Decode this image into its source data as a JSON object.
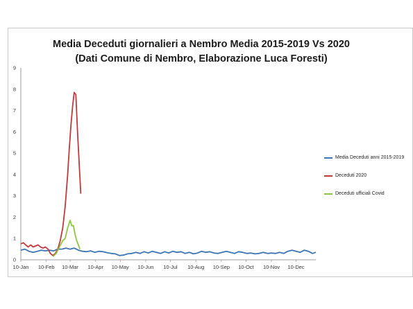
{
  "chart_data": {
    "type": "line",
    "title": "Media Deceduti giornalieri a Nembro Media 2015-2019 Vs 2020",
    "subtitle": "(Dati Comune di Nembro, Elaborazione Luca Foresti)",
    "xlabel": "",
    "ylabel": "",
    "ylim": [
      0,
      9
    ],
    "yticks": [
      "0",
      "1",
      "2",
      "3",
      "4",
      "5",
      "6",
      "7",
      "8",
      "9"
    ],
    "xlim": [
      1,
      360
    ],
    "xticks": [
      {
        "day": 1,
        "label": "10-Jan"
      },
      {
        "day": 32,
        "label": "10-Feb"
      },
      {
        "day": 61,
        "label": "10-Mar"
      },
      {
        "day": 92,
        "label": "10-Apr"
      },
      {
        "day": 122,
        "label": "10-May"
      },
      {
        "day": 153,
        "label": "10-Jun"
      },
      {
        "day": 183,
        "label": "10-Jul"
      },
      {
        "day": 214,
        "label": "10-Aug"
      },
      {
        "day": 245,
        "label": "10-Sep"
      },
      {
        "day": 275,
        "label": "10-Oct"
      },
      {
        "day": 306,
        "label": "10-Nov"
      },
      {
        "day": 336,
        "label": "10-Dec"
      }
    ],
    "grid": false,
    "legend_position": "right",
    "series": [
      {
        "name": "Media Deceduti anni 2015-2019",
        "color": "#3c74b4",
        "x": [
          1,
          6,
          11,
          16,
          21,
          26,
          31,
          36,
          41,
          46,
          51,
          56,
          61,
          66,
          71,
          76,
          81,
          86,
          91,
          96,
          101,
          106,
          111,
          116,
          121,
          126,
          131,
          136,
          141,
          146,
          151,
          156,
          161,
          166,
          171,
          176,
          181,
          186,
          191,
          196,
          201,
          206,
          211,
          216,
          221,
          226,
          231,
          236,
          241,
          246,
          251,
          256,
          261,
          266,
          271,
          276,
          281,
          286,
          291,
          296,
          301,
          306,
          311,
          316,
          321,
          326,
          331,
          336,
          341,
          346,
          351,
          356,
          360
        ],
        "y": [
          0.45,
          0.5,
          0.4,
          0.35,
          0.4,
          0.45,
          0.42,
          0.45,
          0.42,
          0.5,
          0.5,
          0.55,
          0.5,
          0.55,
          0.45,
          0.4,
          0.38,
          0.42,
          0.35,
          0.4,
          0.38,
          0.33,
          0.3,
          0.28,
          0.2,
          0.22,
          0.28,
          0.3,
          0.35,
          0.3,
          0.38,
          0.32,
          0.4,
          0.35,
          0.3,
          0.38,
          0.32,
          0.4,
          0.35,
          0.38,
          0.3,
          0.35,
          0.28,
          0.32,
          0.4,
          0.35,
          0.38,
          0.32,
          0.3,
          0.35,
          0.4,
          0.35,
          0.3,
          0.38,
          0.35,
          0.3,
          0.32,
          0.28,
          0.3,
          0.35,
          0.3,
          0.32,
          0.3,
          0.35,
          0.3,
          0.4,
          0.45,
          0.4,
          0.35,
          0.45,
          0.4,
          0.3,
          0.35
        ]
      },
      {
        "name": "Deceduti 2020",
        "color": "#c0393b",
        "x": [
          1,
          4,
          7,
          10,
          13,
          16,
          19,
          22,
          25,
          28,
          31,
          34,
          37,
          40,
          43,
          46,
          49,
          52,
          55,
          58,
          60,
          62,
          64,
          66,
          68,
          70,
          72,
          74
        ],
        "y": [
          0.75,
          0.8,
          0.7,
          0.6,
          0.7,
          0.6,
          0.65,
          0.7,
          0.6,
          0.55,
          0.6,
          0.5,
          0.3,
          0.2,
          0.3,
          0.5,
          0.9,
          1.5,
          2.5,
          4.0,
          5.2,
          6.3,
          7.2,
          7.85,
          7.75,
          6.0,
          4.5,
          3.1
        ]
      },
      {
        "name": "Deceduti ufficiali Covid",
        "color": "#8dc440",
        "x": [
          40,
          44,
          48,
          52,
          55,
          58,
          61,
          63,
          65,
          67,
          69,
          71,
          73
        ],
        "y": [
          0.15,
          0.3,
          0.6,
          0.9,
          1.0,
          1.5,
          1.85,
          1.6,
          1.6,
          1.2,
          0.9,
          0.7,
          0.5
        ]
      }
    ]
  }
}
